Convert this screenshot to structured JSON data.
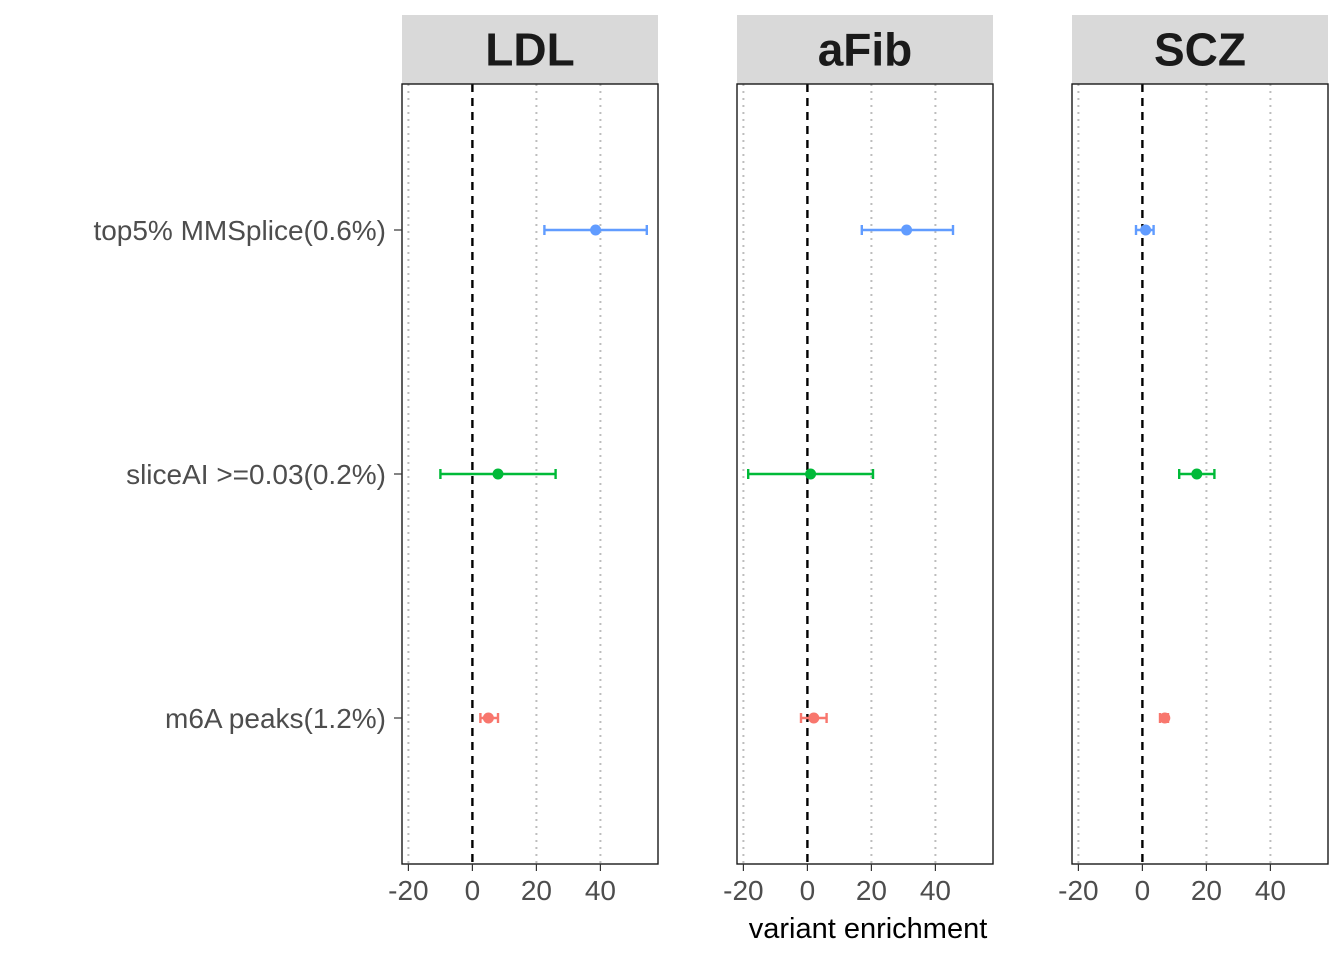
{
  "chart_data": {
    "type": "forest",
    "xlabel": "variant enrichment",
    "ylabel": "",
    "xlim": [
      -22,
      58
    ],
    "x_ticks": [
      -20,
      0,
      20,
      40
    ],
    "x_tick_labels": [
      "-20",
      "0",
      "20",
      "40"
    ],
    "reference_line": 0,
    "grid": "vertical dotted",
    "legend": "none",
    "categories": [
      "top5% MMSplice(0.6%)",
      "sliceAI >=0.03(0.2%)",
      "m6A peaks(1.2%)"
    ],
    "category_colors": [
      "#619CFF",
      "#00BA38",
      "#F8766D"
    ],
    "panels": [
      {
        "title": "LDL",
        "points": [
          {
            "category": "top5% MMSplice(0.6%)",
            "estimate": 38.5,
            "lower": 22.5,
            "upper": 54.5
          },
          {
            "category": "sliceAI >=0.03(0.2%)",
            "estimate": 8,
            "lower": -10,
            "upper": 26
          },
          {
            "category": "m6A peaks(1.2%)",
            "estimate": 5,
            "lower": 2.5,
            "upper": 8
          }
        ]
      },
      {
        "title": "aFib",
        "points": [
          {
            "category": "top5% MMSplice(0.6%)",
            "estimate": 31,
            "lower": 17,
            "upper": 45.5
          },
          {
            "category": "sliceAI >=0.03(0.2%)",
            "estimate": 1,
            "lower": -18.5,
            "upper": 20.5
          },
          {
            "category": "m6A peaks(1.2%)",
            "estimate": 2,
            "lower": -2,
            "upper": 6
          }
        ]
      },
      {
        "title": "SCZ",
        "points": [
          {
            "category": "top5% MMSplice(0.6%)",
            "estimate": 1,
            "lower": -2,
            "upper": 3.5
          },
          {
            "category": "sliceAI >=0.03(0.2%)",
            "estimate": 17,
            "lower": 11.5,
            "upper": 22.5
          },
          {
            "category": "m6A peaks(1.2%)",
            "estimate": 7,
            "lower": 5.5,
            "upper": 8
          }
        ]
      }
    ]
  }
}
